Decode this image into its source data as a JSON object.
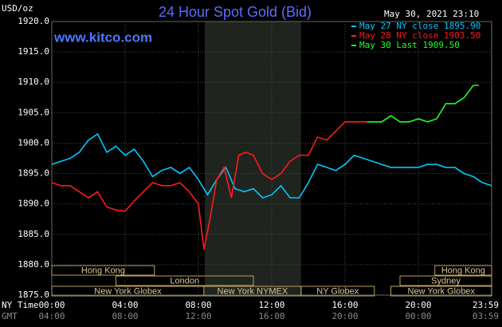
{
  "chart_data": {
    "type": "line",
    "title": "24 Hour Spot Gold (Bid)",
    "unit": "USD/oz",
    "timestamp": "May 30, 2021 23:10",
    "site": "www.kitco.com",
    "axis_names": [
      "NY Time",
      "GMT"
    ],
    "xlim": [
      0,
      24
    ],
    "xticks": [
      {
        "value": 0,
        "label": "00:00"
      },
      {
        "value": 4,
        "label": "04:00"
      },
      {
        "value": 8,
        "label": "08:00"
      },
      {
        "value": 12,
        "label": "12:00"
      },
      {
        "value": 16,
        "label": "16:00"
      },
      {
        "value": 20,
        "label": "20:00"
      },
      {
        "value": 23.98,
        "label": "23:59"
      }
    ],
    "xticks_gmt": [
      "04:00",
      "08:00",
      "12:00",
      "16:00",
      "20:00",
      "00:00",
      "03:59"
    ],
    "ylim": [
      1875,
      1920
    ],
    "yticks": [
      {
        "value": 1875,
        "label": "1875.0"
      },
      {
        "value": 1880,
        "label": "1880.0"
      },
      {
        "value": 1885,
        "label": "1885.0"
      },
      {
        "value": 1890,
        "label": "1890.0"
      },
      {
        "value": 1895,
        "label": "1895.0"
      },
      {
        "value": 1900,
        "label": "1900.0"
      },
      {
        "value": 1905,
        "label": "1905.0"
      },
      {
        "value": 1910,
        "label": "1910.0"
      },
      {
        "value": 1915,
        "label": "1915.0"
      },
      {
        "value": 1920,
        "label": "1920.0"
      }
    ],
    "grid": true,
    "shade": [
      8.35,
      13.6
    ],
    "sessions": [
      [
        {
          "label": "Hong Kong",
          "start": 0,
          "end": 5.6
        },
        {
          "label": "Hong Kong",
          "start": 20.9,
          "end": 24
        }
      ],
      [
        {
          "label": "London",
          "start": 3.5,
          "end": 11.0
        },
        {
          "label": "Sydney",
          "start": 19.0,
          "end": 24
        }
      ],
      [
        {
          "label": "New York Globex",
          "start": 0,
          "end": 8.3
        },
        {
          "label": "New York NYMEX",
          "start": 8.3,
          "end": 13.6
        },
        {
          "label": "NY Globex",
          "start": 13.6,
          "end": 17.6
        },
        {
          "label": "New York Globex",
          "start": 18.5,
          "end": 24
        }
      ]
    ],
    "series": [
      {
        "name": "May 27 NY close 1895.90",
        "color": "#00c8ff",
        "x": [
          0,
          0.5,
          1,
          1.5,
          2,
          2.5,
          3,
          3.5,
          4,
          4.5,
          5,
          5.5,
          6,
          6.5,
          7,
          7.5,
          8,
          8.5,
          9,
          9.5,
          10,
          10.5,
          11,
          11.5,
          12,
          12.5,
          13,
          13.5,
          14,
          14.5,
          15,
          15.5,
          16,
          16.5,
          17,
          17.5,
          18,
          18.5,
          19,
          19.5,
          20,
          20.5,
          21,
          21.5,
          22,
          22.5,
          23,
          23.5,
          24
        ],
        "values": [
          1896.5,
          1897,
          1897.5,
          1898.5,
          1900.5,
          1901.5,
          1898.5,
          1899.5,
          1898,
          1899,
          1897,
          1894.5,
          1895.5,
          1896,
          1895,
          1896,
          1894,
          1891.5,
          1894,
          1896,
          1892.5,
          1892,
          1892.5,
          1891,
          1891.5,
          1893,
          1891,
          1891,
          1893.5,
          1896.5,
          1896,
          1895.5,
          1896.5,
          1898,
          1897.5,
          1897,
          1896.5,
          1896,
          1896,
          1896,
          1896,
          1896.5,
          1896.5,
          1896,
          1896,
          1895,
          1894.5,
          1893.5,
          1893
        ]
      },
      {
        "name": "May 28 NY close 1903.50",
        "color": "#ff1a1a",
        "x": [
          0,
          0.5,
          1,
          1.5,
          2,
          2.5,
          3,
          3.5,
          4,
          4.5,
          5,
          5.5,
          6,
          6.5,
          7,
          7.5,
          8,
          8.3,
          8.6,
          9,
          9.4,
          9.8,
          10.2,
          10.6,
          11,
          11.5,
          12,
          12.5,
          13,
          13.5,
          14,
          14.5,
          15,
          15.5,
          16,
          16.5,
          17,
          17.2
        ],
        "values": [
          1893.5,
          1893,
          1893,
          1892,
          1891,
          1892,
          1889.5,
          1889,
          1888.8,
          1890.5,
          1892,
          1893.5,
          1893,
          1893,
          1893.5,
          1892,
          1890,
          1882.5,
          1887,
          1894,
          1896,
          1891,
          1898,
          1898.5,
          1898,
          1895,
          1894,
          1895,
          1897,
          1898,
          1898,
          1901,
          1900.5,
          1902,
          1903.5,
          1903.5,
          1903.5,
          1903.5
        ]
      },
      {
        "name": "May 30 Last 1909.50",
        "color": "#22ff22",
        "x": [
          17.2,
          18,
          18.5,
          19,
          19.5,
          20,
          20.5,
          21,
          21.5,
          22,
          22.5,
          23,
          23.3
        ],
        "values": [
          1903.5,
          1903.5,
          1904.5,
          1903.5,
          1903.5,
          1904,
          1903.5,
          1904,
          1906.5,
          1906.5,
          1907.5,
          1909.5,
          1909.5
        ]
      }
    ]
  }
}
